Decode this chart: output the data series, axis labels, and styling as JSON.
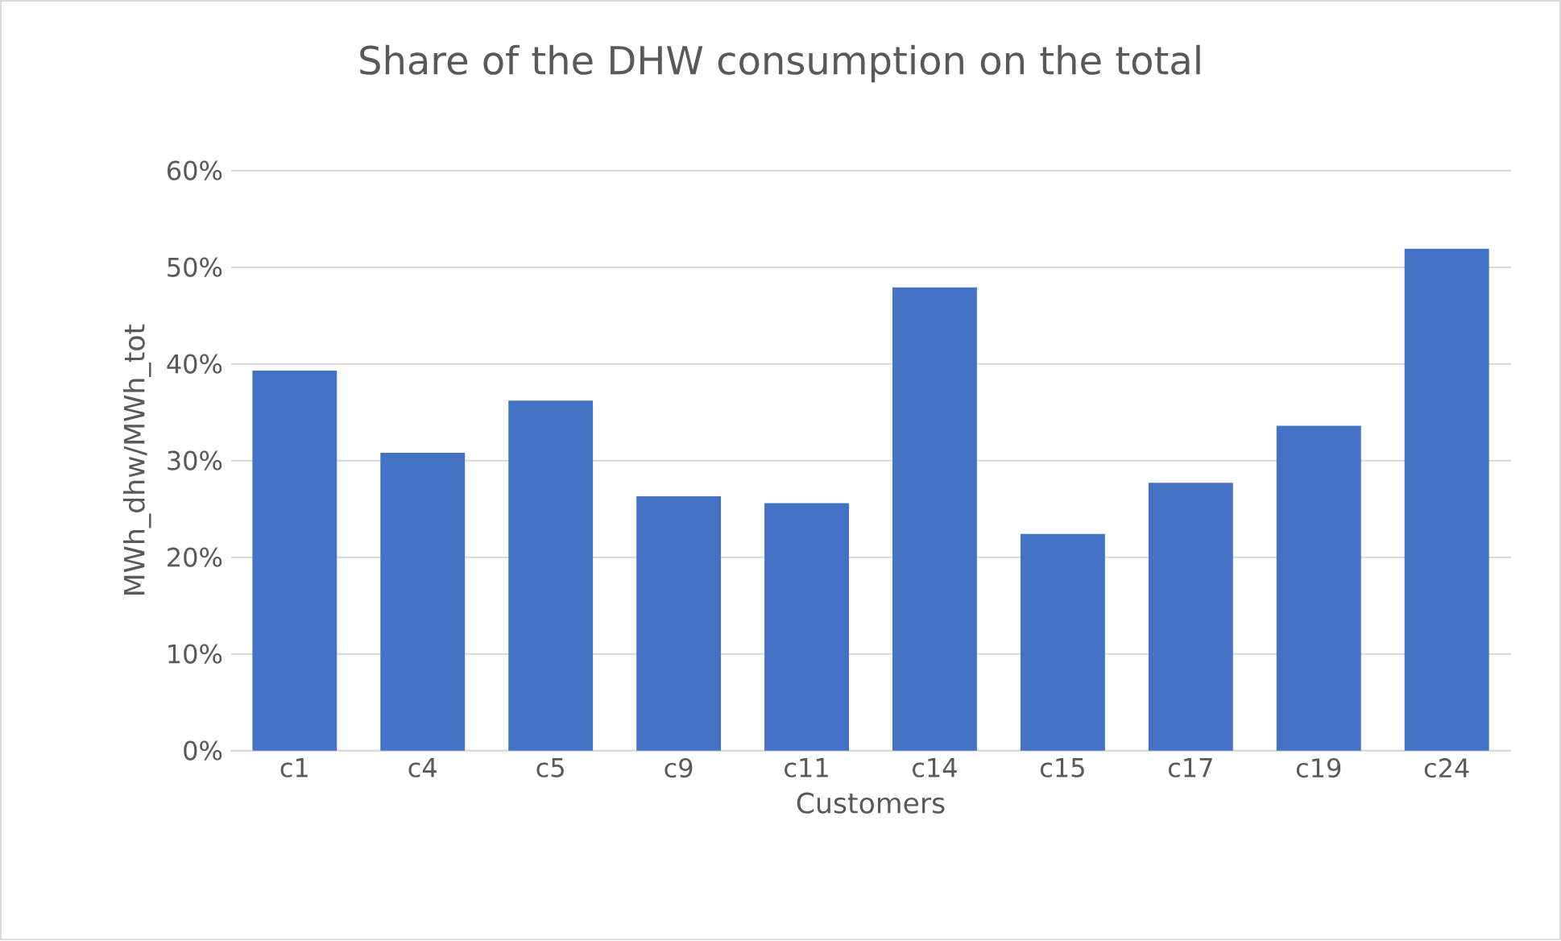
{
  "chart_data": {
    "type": "bar",
    "title": "Share of the DHW consumption on the total",
    "xlabel": "Customers",
    "ylabel": "MWh_dhw/MWh_tot",
    "categories": [
      "c1",
      "c4",
      "c5",
      "c9",
      "c11",
      "c14",
      "c15",
      "c17",
      "c19",
      "c24"
    ],
    "values": [
      39.3,
      30.8,
      36.2,
      26.3,
      25.6,
      47.9,
      22.4,
      27.7,
      33.6,
      51.9
    ],
    "color": "#4472c4",
    "ylim": [
      0,
      60
    ],
    "yticks": [
      {
        "value": 0,
        "label": "0%"
      },
      {
        "value": 10,
        "label": "10%"
      },
      {
        "value": 20,
        "label": "20%"
      },
      {
        "value": 30,
        "label": "30%"
      },
      {
        "value": 40,
        "label": "40%"
      },
      {
        "value": 50,
        "label": "50%"
      },
      {
        "value": 60,
        "label": "60%"
      }
    ],
    "grid": "y"
  }
}
